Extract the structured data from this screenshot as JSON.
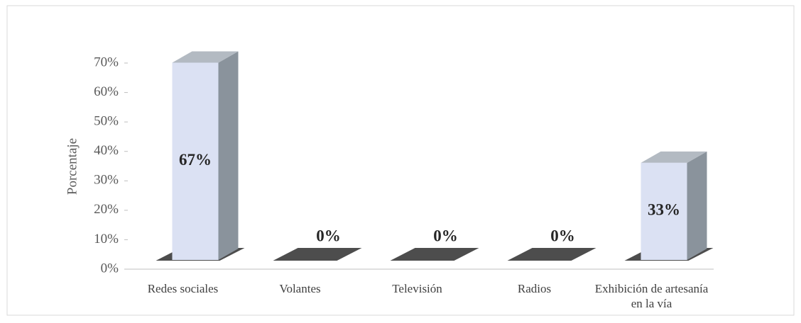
{
  "chart_data": {
    "type": "bar3d",
    "y_label": "Porcentaje",
    "categories": [
      "Redes sociales",
      "Volantes",
      "Televisión",
      "Radios",
      "Exhibición de artesanía en la vía"
    ],
    "values": [
      67,
      0,
      0,
      0,
      33
    ],
    "value_labels": [
      "67%",
      "0%",
      "0%",
      "0%",
      "33%"
    ],
    "color": "#dbe1f3",
    "ylim": [
      0,
      70
    ],
    "yticks": [
      {
        "value": 0,
        "label": "0%"
      },
      {
        "value": 10,
        "label": "10%"
      },
      {
        "value": 20,
        "label": "20%"
      },
      {
        "value": 30,
        "label": "30%"
      },
      {
        "value": 40,
        "label": "40%"
      },
      {
        "value": 50,
        "label": "50%"
      },
      {
        "value": 60,
        "label": "60%"
      },
      {
        "value": 70,
        "label": "70%"
      }
    ]
  }
}
